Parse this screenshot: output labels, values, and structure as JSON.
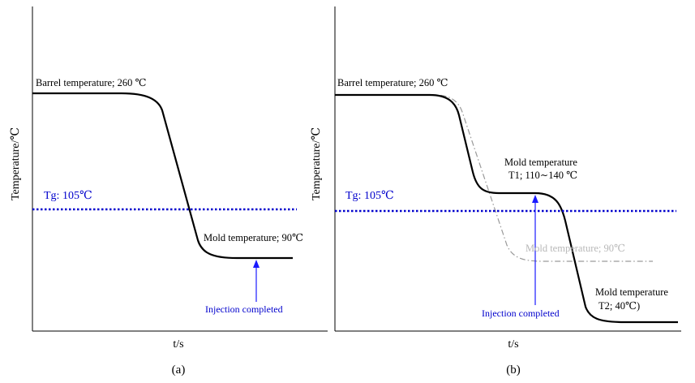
{
  "panel_a": {
    "caption": "(a)",
    "y_label": "Temperature/℃",
    "x_label": "t/s",
    "barrel_label": "Barrel temperature; 260 ℃",
    "tg_label": "Tg: 105℃",
    "mold_label": "Mold temperature; 90℃",
    "injection_label": "Injection completed"
  },
  "panel_b": {
    "caption": "(b)",
    "y_label": "Temperature/℃",
    "x_label": "t/s",
    "barrel_label": "Barrel temperature; 260 ℃",
    "tg_label": "Tg: 105℃",
    "mold_t1_label_line1": "Mold temperature",
    "mold_t1_label_line2": "T1; 110∼140 ℃",
    "mold_ref_label": "Mold temperature; 90℃",
    "mold_t2_label_line1": "Mold temperature",
    "mold_t2_label_line2": "T2; 40℃)",
    "injection_label": "Injection completed"
  },
  "colors": {
    "curve": "#000000",
    "tg_line": "#0000cc",
    "arrow": "#1a1aff",
    "ref_curve": "#9a9a9a"
  }
}
